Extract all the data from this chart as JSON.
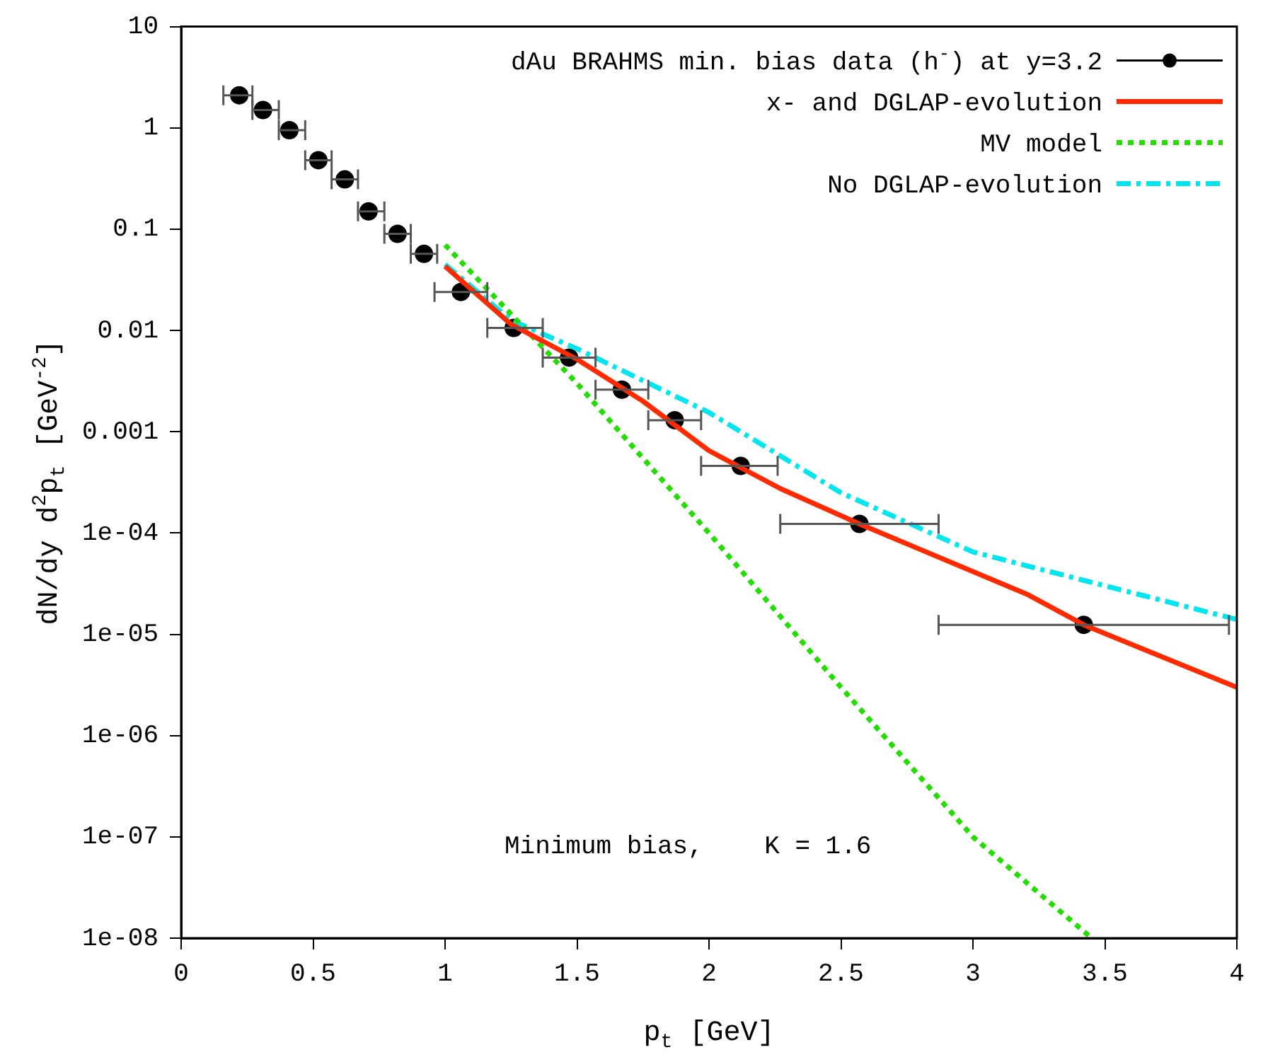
{
  "chart_data": {
    "type": "line",
    "xlabel": "p$_{t}$ [GeV]",
    "ylabel": "dN/dy d$^{2}$p$_{t}$ [GeV$^{-2}$]",
    "log": "y",
    "xlim": [
      0,
      4
    ],
    "xticks": [
      0,
      0.5,
      1,
      1.5,
      2,
      2.5,
      3,
      3.5,
      4
    ],
    "ylim": [
      1e-08,
      10
    ],
    "yticks": [
      10,
      1,
      0.1,
      0.01,
      0.001,
      {
        "value": 0.0001,
        "label": "1e-04"
      },
      {
        "value": 1e-05,
        "label": "1e-05"
      },
      {
        "value": 1e-06,
        "label": "1e-06"
      },
      {
        "value": 1e-07,
        "label": "1e-07"
      },
      {
        "value": 1e-08,
        "label": "1e-08"
      }
    ],
    "grid": false,
    "legend": "top right",
    "annotations": [
      "Minimum bias,    K = 1.6"
    ],
    "series": [
      {
        "name": "dAu BRAHMS min. bias data (h$^{-}$) at y=3.2",
        "type": "scatter",
        "marker": "circle",
        "color": "#000000",
        "x": [
          0.22,
          0.31,
          0.41,
          0.52,
          0.62,
          0.71,
          0.82,
          0.92,
          1.06,
          1.26,
          1.47,
          1.67,
          1.87,
          2.12,
          2.57,
          3.42
        ],
        "values": [
          2.1,
          1.5,
          0.95,
          0.48,
          0.31,
          0.15,
          0.09,
          0.057,
          0.024,
          0.0106,
          0.0054,
          0.0026,
          0.0013,
          0.00046,
          0.000123,
          1.24e-05
        ],
        "xerrors": [
          [
            0.16,
            0.27
          ],
          [
            0.27,
            0.37
          ],
          [
            0.37,
            0.47
          ],
          [
            0.47,
            0.57
          ],
          [
            0.57,
            0.67
          ],
          [
            0.67,
            0.77
          ],
          [
            0.77,
            0.87
          ],
          [
            0.87,
            0.97
          ],
          [
            0.96,
            1.16
          ],
          [
            1.16,
            1.37
          ],
          [
            1.37,
            1.57
          ],
          [
            1.57,
            1.77
          ],
          [
            1.77,
            1.97
          ],
          [
            1.97,
            2.26
          ],
          [
            2.27,
            2.87
          ],
          [
            2.87,
            3.97
          ]
        ]
      },
      {
        "name": "x- and DGLAP-evolution",
        "type": "line",
        "line_style": "solid",
        "color": "#ff2a00",
        "x": [
          1,
          1.25,
          1.5,
          1.75,
          2,
          2.27,
          2.57,
          3.21,
          3.42,
          4
        ],
        "values": [
          0.043,
          0.0115,
          0.0052,
          0.002,
          0.00065,
          0.000275,
          0.000123,
          2.45e-05,
          1.24e-05,
          3e-06
        ]
      },
      {
        "name": "MV model",
        "type": "line",
        "line_style": "dotted",
        "color": "#22dd00",
        "x": [
          1,
          1.5,
          2,
          2.5,
          3,
          3.45
        ],
        "values": [
          0.07,
          0.003,
          0.0001,
          3e-06,
          1e-07,
          1e-08
        ]
      },
      {
        "name": "No DGLAP-evolution",
        "type": "line",
        "line_style": "dashdot",
        "color": "#00e5ee",
        "x": [
          1,
          1.25,
          1.5,
          2,
          2.5,
          3,
          4
        ],
        "values": [
          0.045,
          0.0126,
          0.0066,
          0.00155,
          0.00025,
          6.5e-05,
          1.4e-05
        ]
      }
    ]
  }
}
